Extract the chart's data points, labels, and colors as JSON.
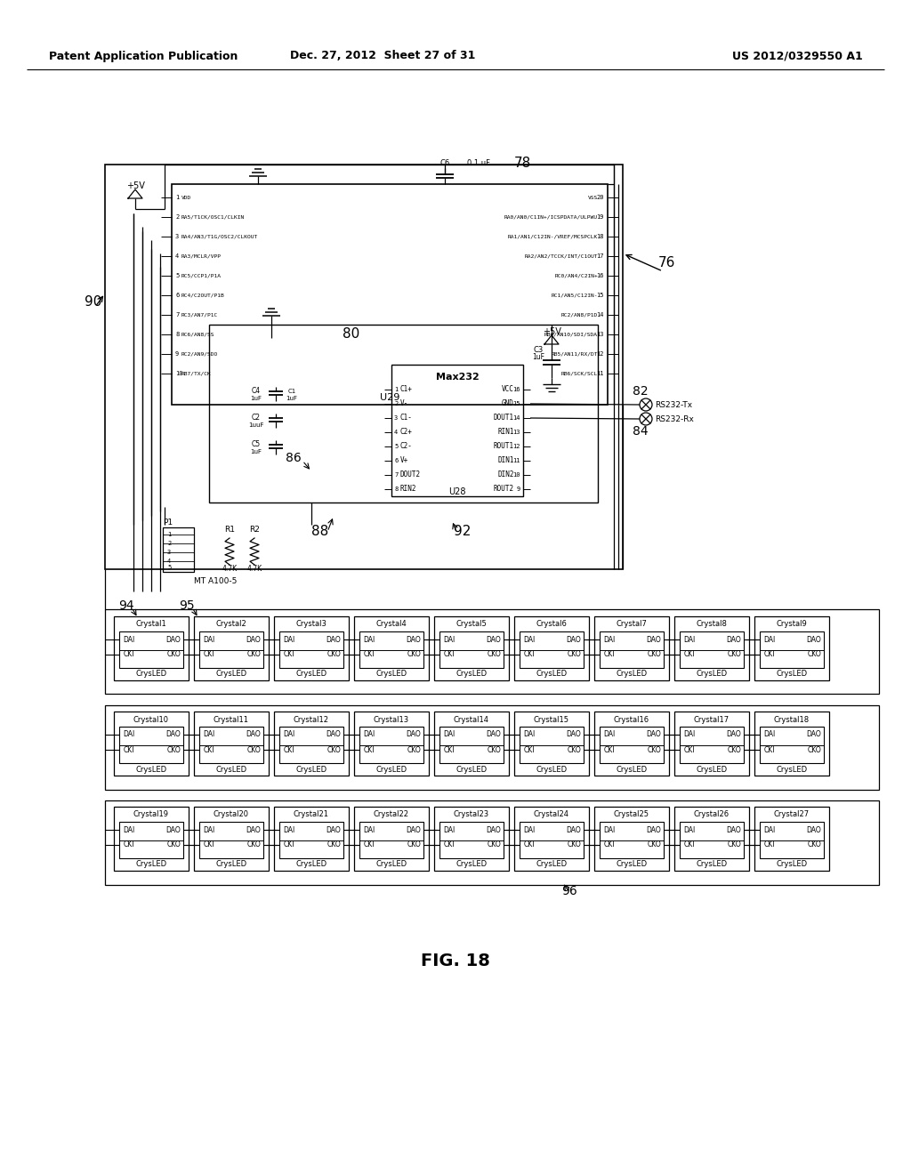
{
  "patent_header": {
    "left": "Patent Application Publication",
    "center": "Dec. 27, 2012  Sheet 27 of 31",
    "right": "US 2012/0329550 A1"
  },
  "bg_color": "#ffffff",
  "line_color": "#000000",
  "text_color": "#000000",
  "figure_label": "FIG. 18"
}
